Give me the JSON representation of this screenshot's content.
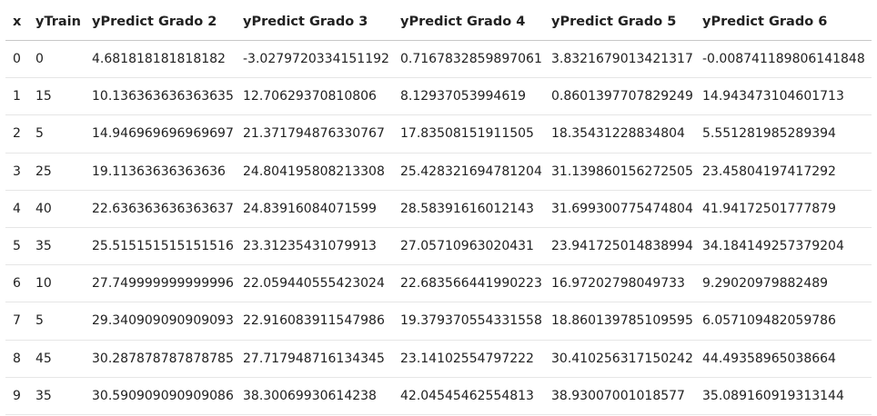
{
  "table": {
    "headers": [
      "x",
      "yTrain",
      "yPredict Grado 2",
      "yPredict Grado 3",
      "yPredict Grado 4",
      "yPredict Grado 5",
      "yPredict Grado 6"
    ],
    "rows": [
      [
        "0",
        "0",
        "4.681818181818182",
        "-3.0279720334151192",
        "0.7167832859897061",
        "3.8321679013421317",
        "-0.008741189806141848"
      ],
      [
        "1",
        "15",
        "10.136363636363635",
        "12.70629370810806",
        "8.12937053994619",
        "0.8601397707829249",
        "14.943473104601713"
      ],
      [
        "2",
        "5",
        "14.946969696969697",
        "21.371794876330767",
        "17.83508151911505",
        "18.35431228834804",
        "5.551281985289394"
      ],
      [
        "3",
        "25",
        "19.11363636363636",
        "24.804195808213308",
        "25.428321694781204",
        "31.139860156272505",
        "23.45804197417292"
      ],
      [
        "4",
        "40",
        "22.636363636363637",
        "24.83916084071599",
        "28.58391616012143",
        "31.699300775474804",
        "41.94172501777879"
      ],
      [
        "5",
        "35",
        "25.515151515151516",
        "23.31235431079913",
        "27.05710963020431",
        "23.941725014838994",
        "34.184149257379204"
      ],
      [
        "6",
        "10",
        "27.749999999999996",
        "22.059440555423024",
        "22.683566441990223",
        "16.97202798049733",
        "9.29020979882489"
      ],
      [
        "7",
        "5",
        "29.340909090909093",
        "22.916083911547986",
        "19.379370554331558",
        "18.860139785109595",
        "6.057109482059786"
      ],
      [
        "8",
        "45",
        "30.287878787878785",
        "27.717948716134345",
        "23.14102554797222",
        "30.410256317150242",
        "44.49358965038664"
      ],
      [
        "9",
        "35",
        "30.590909090909086",
        "38.30069930614238",
        "42.04545462554813",
        "38.93007001018577",
        "35.089160919313144"
      ]
    ]
  }
}
